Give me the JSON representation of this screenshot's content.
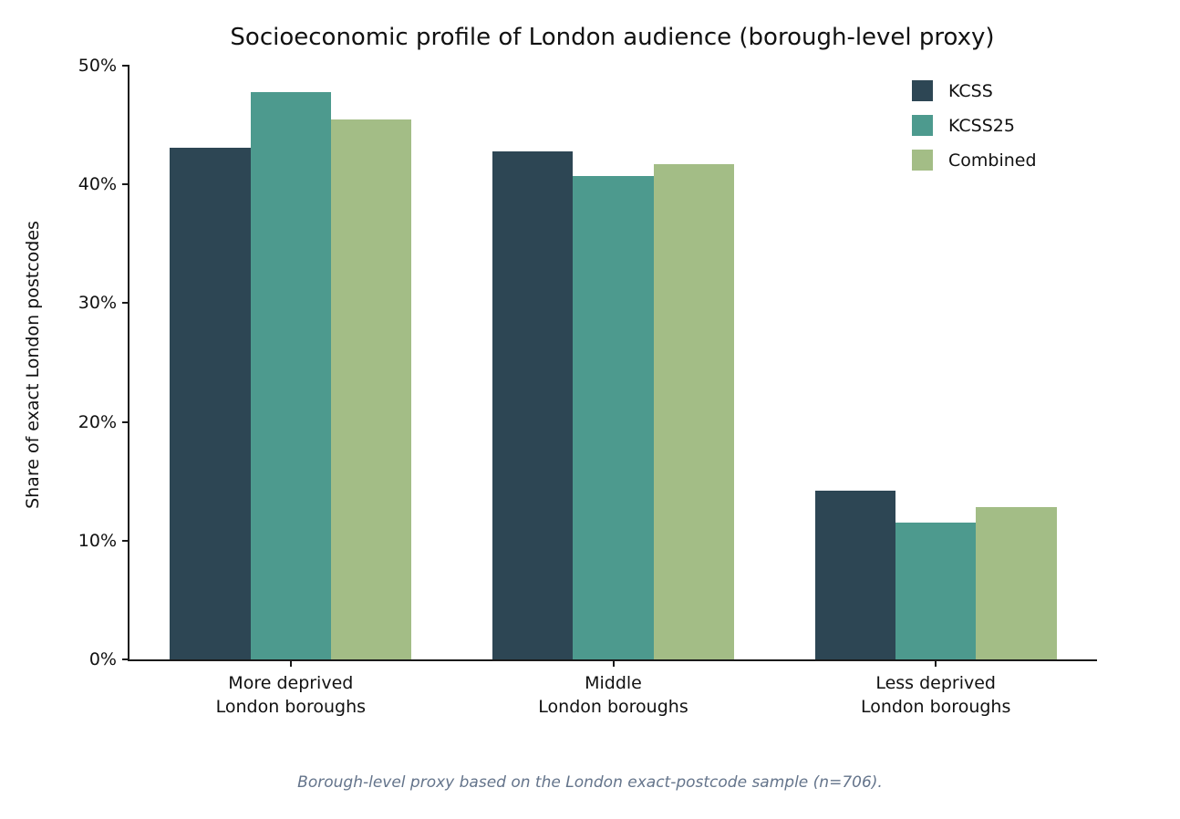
{
  "chart_data": {
    "type": "bar",
    "title": "Socioeconomic profile of London audience (borough-level proxy)",
    "xlabel": "",
    "ylabel": "Share of exact London postcodes",
    "categories": [
      "More deprived\nLondon boroughs",
      "Middle\nLondon boroughs",
      "Less deprived\nLondon boroughs"
    ],
    "series": [
      {
        "name": "KCSS",
        "color": "#2d4654",
        "values": [
          43.1,
          42.8,
          14.2
        ]
      },
      {
        "name": "KCSS25",
        "color": "#4d9a8e",
        "values": [
          47.8,
          40.7,
          11.5
        ]
      },
      {
        "name": "Combined",
        "color": "#a3bd86",
        "values": [
          45.5,
          41.7,
          12.8
        ]
      }
    ],
    "ylim": [
      0,
      50
    ],
    "ytick_values": [
      0,
      10,
      20,
      30,
      40,
      50
    ],
    "ytick_labels": [
      "0%",
      "10%",
      "20%",
      "30%",
      "40%",
      "50%"
    ],
    "legend_position": "upper right",
    "grid": false,
    "bar_width_fraction_of_group": 0.25
  },
  "caption": "Borough-level proxy based on the London exact-postcode sample (n=706)."
}
